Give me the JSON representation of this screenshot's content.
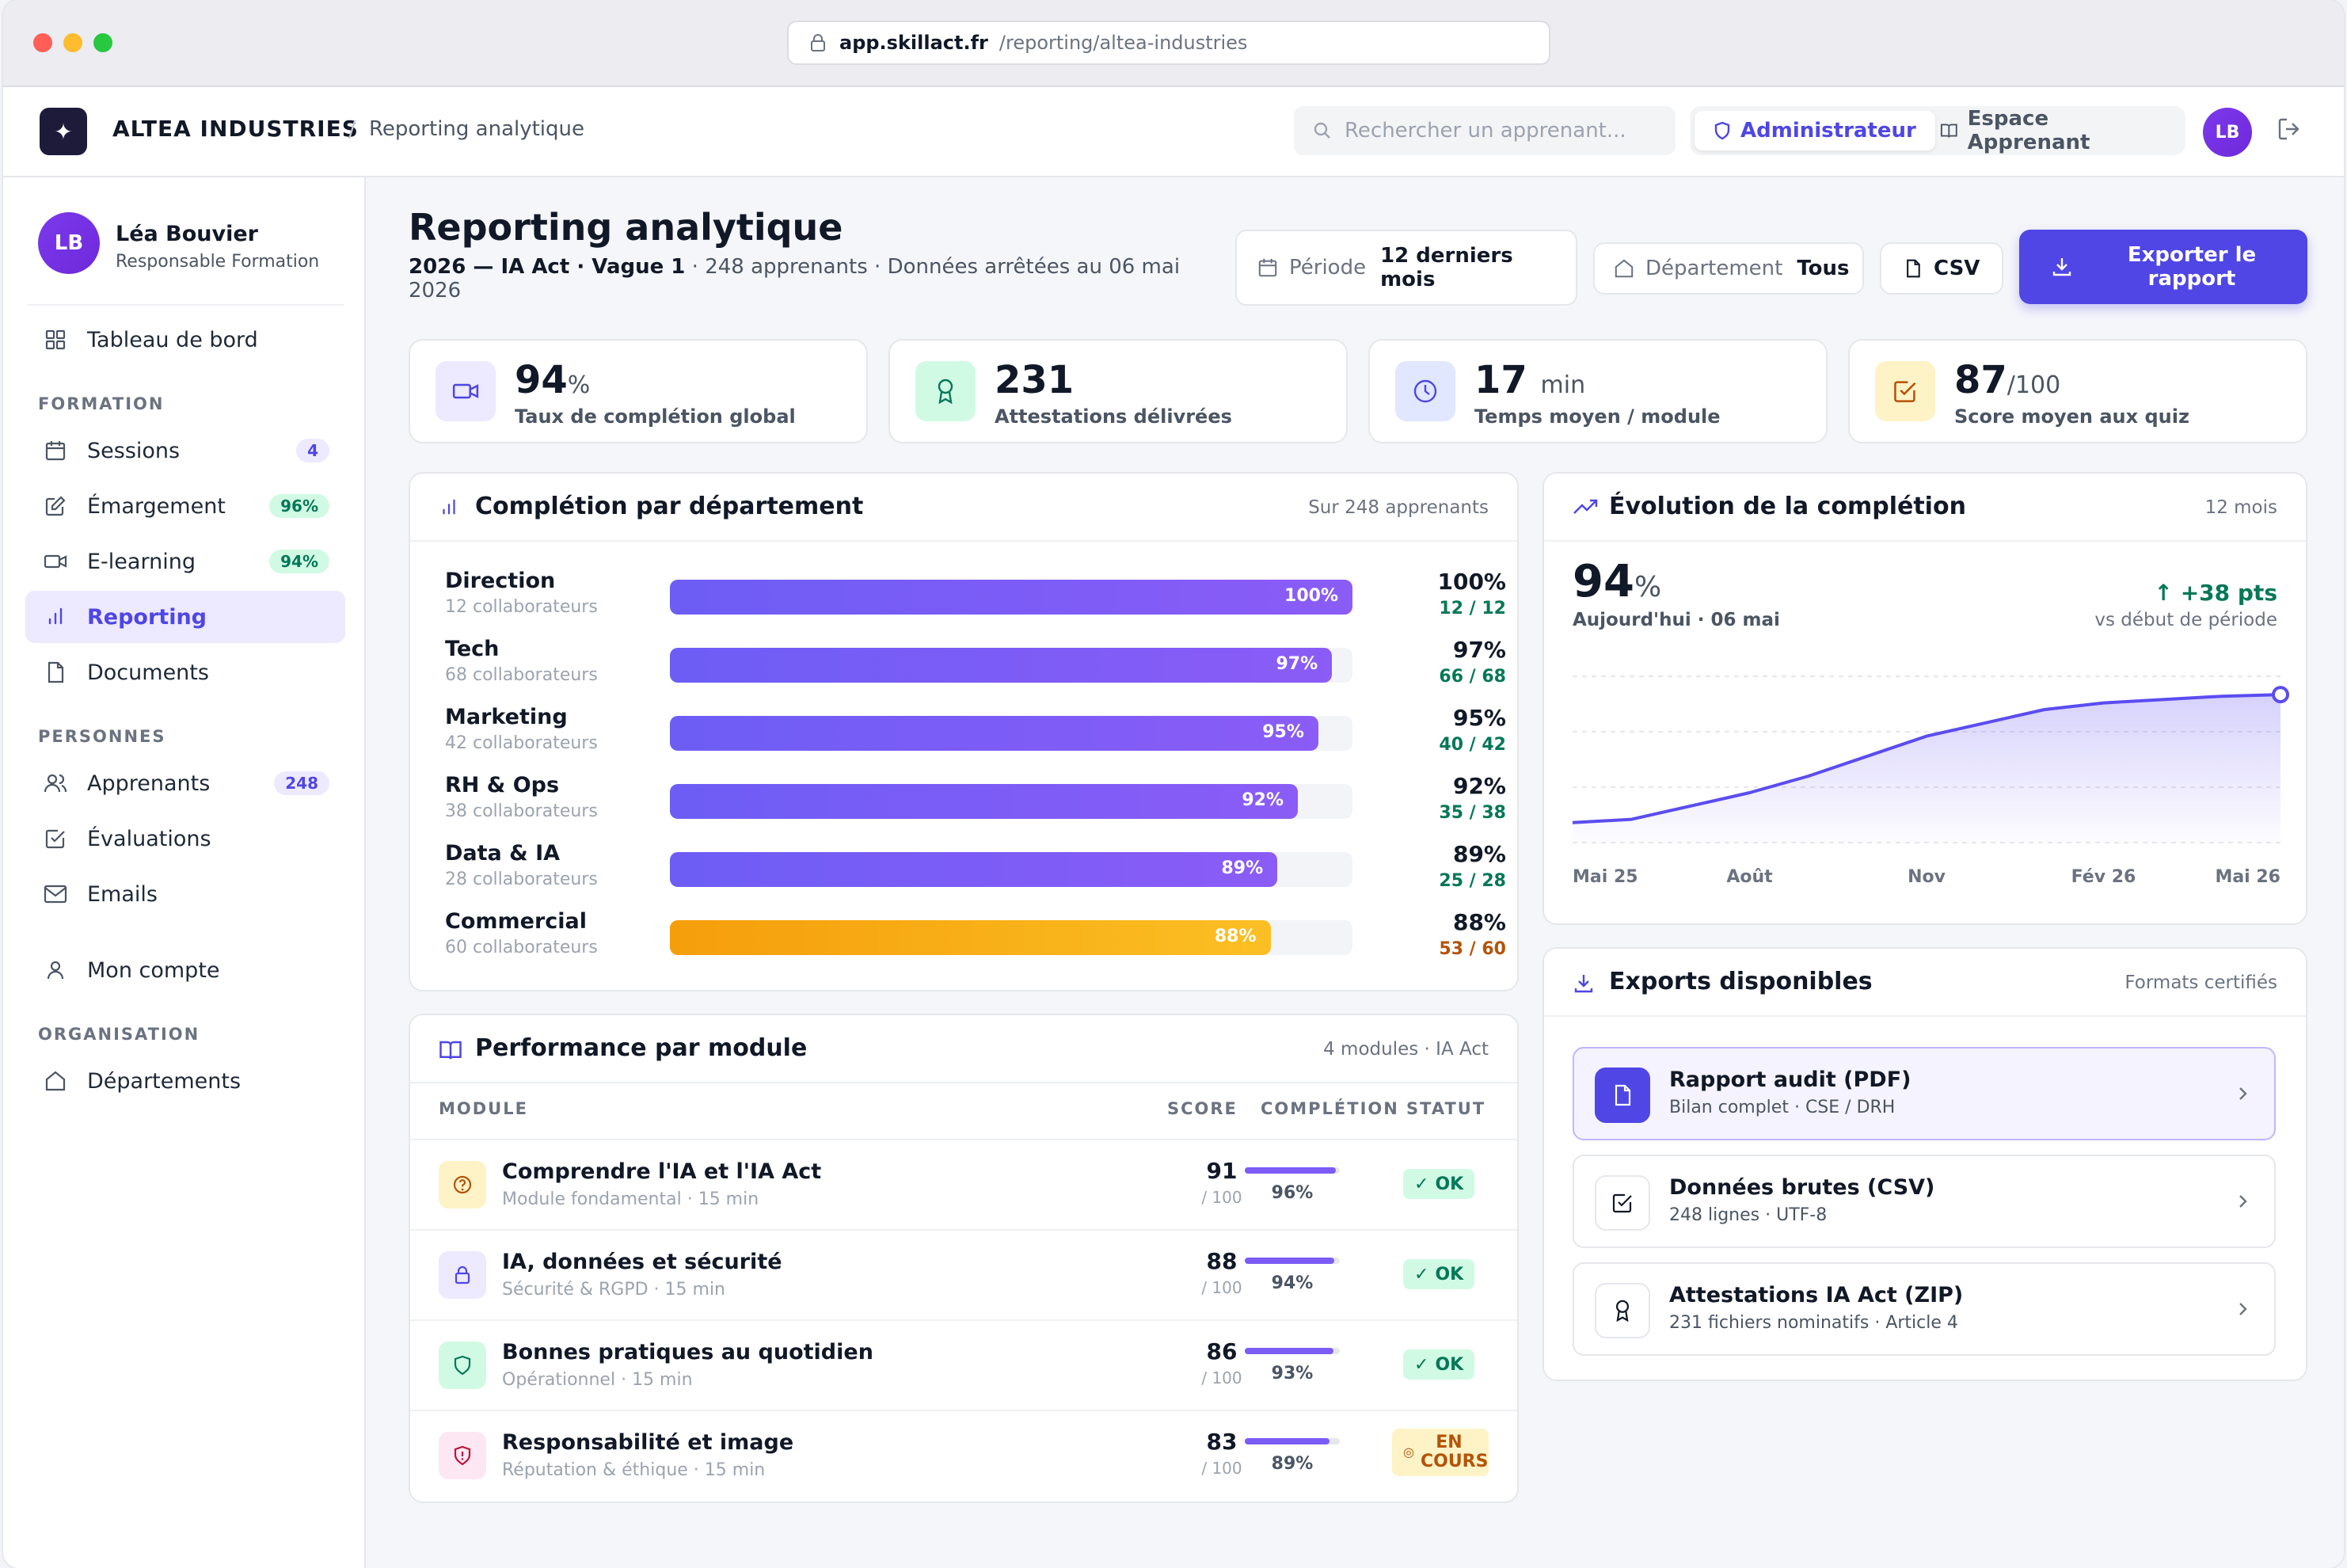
{
  "browser": {
    "host": "app.skillact.fr",
    "path": "/reporting/altea-industries"
  },
  "header": {
    "org": "ALTEA INDUSTRIES",
    "separator": "/",
    "crumb": "Reporting analytique",
    "search_placeholder": "Rechercher un apprenant...",
    "role_admin": "Administrateur",
    "role_learner": "Espace Apprenant",
    "avatar": "LB"
  },
  "sidebar": {
    "user": {
      "initials": "LB",
      "name": "Léa Bouvier",
      "role": "Responsable Formation"
    },
    "dashboard": "Tableau de bord",
    "sections": {
      "formation": "FORMATION",
      "personnes": "PERSONNES",
      "organisation": "ORGANISATION"
    },
    "items": {
      "sessions": {
        "label": "Sessions",
        "badge": "4"
      },
      "emargement": {
        "label": "Émargement",
        "badge": "96%"
      },
      "elearning": {
        "label": "E-learning",
        "badge": "94%"
      },
      "reporting": {
        "label": "Reporting"
      },
      "documents": {
        "label": "Documents"
      },
      "apprenants": {
        "label": "Apprenants",
        "badge": "248"
      },
      "evaluations": {
        "label": "Évaluations"
      },
      "emails": {
        "label": "Emails"
      },
      "compte": {
        "label": "Mon compte"
      },
      "departements": {
        "label": "Départements"
      }
    }
  },
  "page": {
    "title": "Reporting analytique",
    "subtitle_bold": "2026 — IA Act · Vague 1",
    "subtitle_rest": " · 248 apprenants · Données arrêtées au 06 mai 2026",
    "filters": {
      "period_label": "Période",
      "period_value": "12 derniers mois",
      "dept_label": "Département",
      "dept_value": "Tous",
      "csv": "CSV"
    },
    "export_button": "Exporter le rapport"
  },
  "kpis": [
    {
      "value": "94",
      "unit": "%",
      "label": "Taux de complétion global"
    },
    {
      "value": "231",
      "unit": "",
      "label": "Attestations délivrées"
    },
    {
      "value": "17",
      "unit": "min",
      "label": "Temps moyen / module"
    },
    {
      "value": "87",
      "unit": "/100",
      "label": "Score moyen aux quiz"
    }
  ],
  "departments": {
    "title": "Complétion par département",
    "meta": "Sur 248 apprenants",
    "rows": [
      {
        "name": "Direction",
        "sub": "12 collaborateurs",
        "pct": 100,
        "pct_label": "100%",
        "count": "12 / 12"
      },
      {
        "name": "Tech",
        "sub": "68 collaborateurs",
        "pct": 97,
        "pct_label": "97%",
        "count": "66 / 68"
      },
      {
        "name": "Marketing",
        "sub": "42 collaborateurs",
        "pct": 95,
        "pct_label": "95%",
        "count": "40 / 42"
      },
      {
        "name": "RH & Ops",
        "sub": "38 collaborateurs",
        "pct": 92,
        "pct_label": "92%",
        "count": "35 / 38"
      },
      {
        "name": "Data & IA",
        "sub": "28 collaborateurs",
        "pct": 89,
        "pct_label": "89%",
        "count": "25 / 28"
      },
      {
        "name": "Commercial",
        "sub": "60 collaborateurs",
        "pct": 88,
        "pct_label": "88%",
        "count": "53 / 60"
      }
    ]
  },
  "modules": {
    "title": "Performance par module",
    "meta": "4 modules · IA Act",
    "headers": {
      "module": "MODULE",
      "score": "SCORE",
      "completion": "COMPLÉTION",
      "status": "STATUT"
    },
    "score_suffix": "/ 100",
    "rows": [
      {
        "name": "Comprendre l'IA et l'IA Act",
        "sub": "Module fondamental · 15 min",
        "score": "91",
        "completion": 96,
        "completion_label": "96%",
        "status": "OK"
      },
      {
        "name": "IA, données et sécurité",
        "sub": "Sécurité & RGPD · 15 min",
        "score": "88",
        "completion": 94,
        "completion_label": "94%",
        "status": "OK"
      },
      {
        "name": "Bonnes pratiques au quotidien",
        "sub": "Opérationnel · 15 min",
        "score": "86",
        "completion": 93,
        "completion_label": "93%",
        "status": "OK"
      },
      {
        "name": "Responsabilité et image",
        "sub": "Réputation & éthique · 15 min",
        "score": "83",
        "completion": 89,
        "completion_label": "89%",
        "status": "EN COURS"
      }
    ]
  },
  "evolution": {
    "title": "Évolution de la complétion",
    "meta": "12 mois",
    "big_value": "94",
    "big_unit": "%",
    "today": "Aujourd'hui · 06 mai",
    "delta": "+38 pts",
    "delta_sub": "vs début de période"
  },
  "chart_data": {
    "type": "area",
    "title": "Évolution de la complétion",
    "x_ticks": [
      "Mai 25",
      "Août",
      "Nov",
      "Fév 26",
      "Mai 26"
    ],
    "x": [
      0,
      1,
      2,
      3,
      4,
      5,
      6,
      7,
      8,
      9,
      10,
      11,
      12
    ],
    "values": [
      56,
      57,
      61,
      65,
      70,
      76,
      82,
      86,
      90,
      92,
      93,
      94,
      94.5
    ],
    "ylim": [
      50,
      100
    ],
    "series_color": "#5b4cf0",
    "grid": "horizontal dashed"
  },
  "exports": {
    "title": "Exports disponibles",
    "meta": "Formats certifiés",
    "items": [
      {
        "name": "Rapport audit (PDF)",
        "sub": "Bilan complet · CSE / DRH"
      },
      {
        "name": "Données brutes (CSV)",
        "sub": "248 lignes · UTF-8"
      },
      {
        "name": "Attestations IA Act (ZIP)",
        "sub": "231 fichiers nominatifs · Article 4"
      }
    ]
  },
  "colors": {
    "accent": "#4f46e5",
    "success": "#047857",
    "warning": "#b45309"
  }
}
